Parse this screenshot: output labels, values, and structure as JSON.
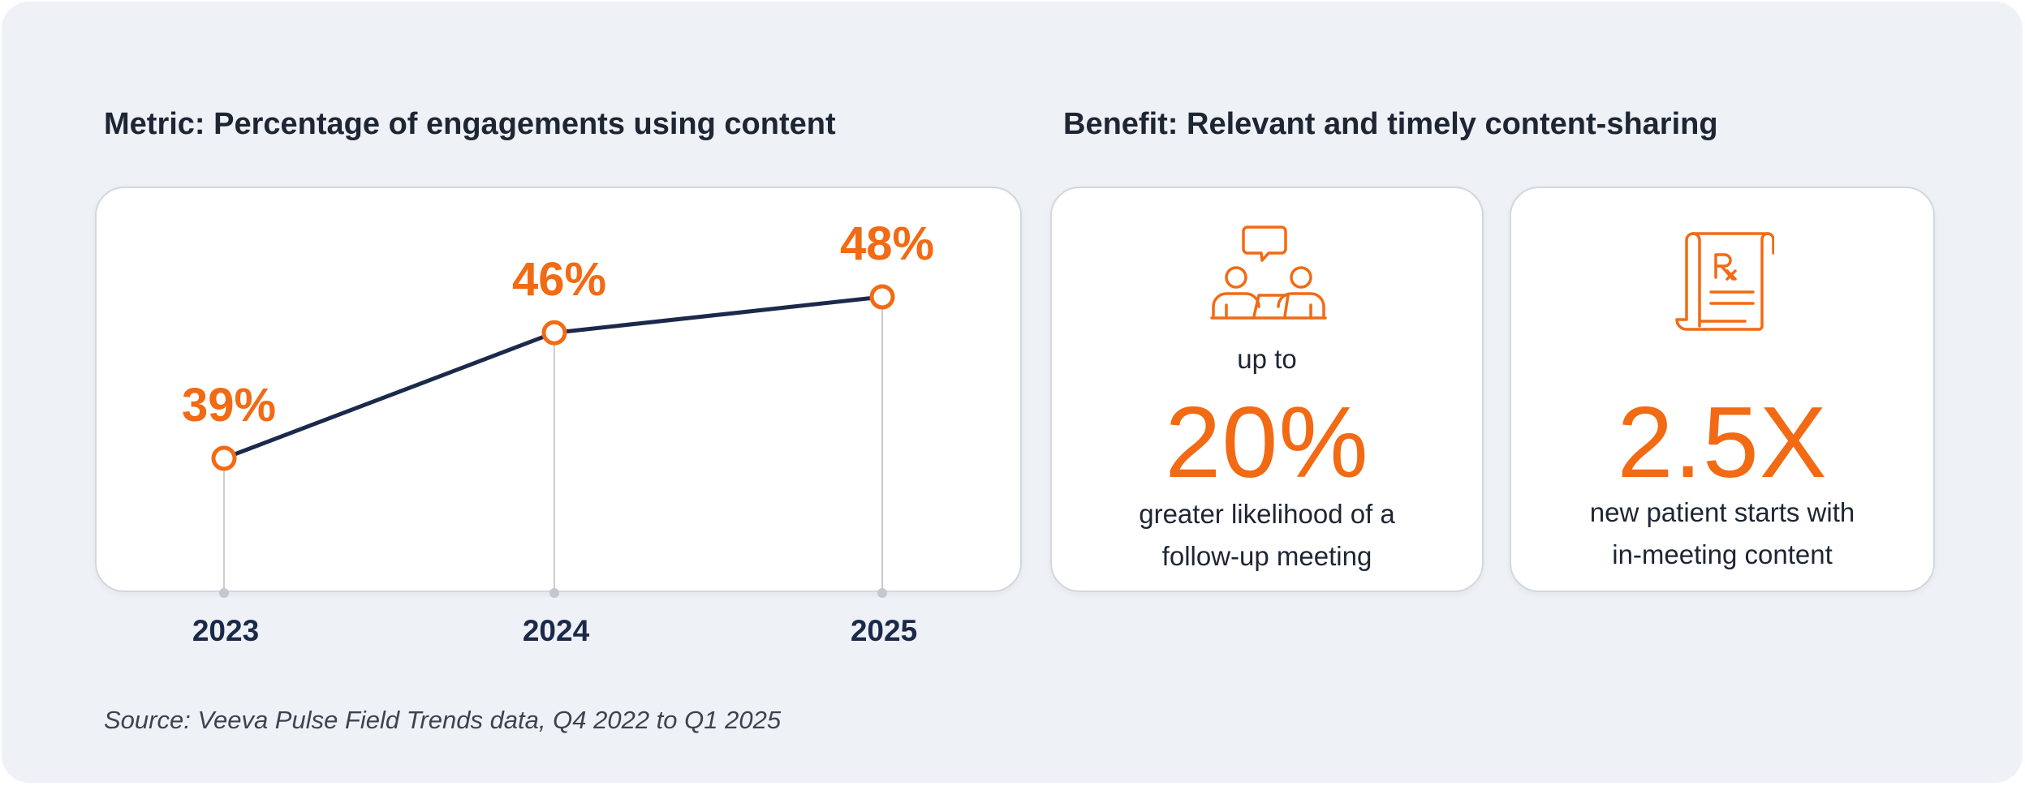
{
  "chart_data": {
    "type": "line",
    "title": "Metric: Percentage of engagements using content",
    "categories": [
      "2023",
      "2024",
      "2025"
    ],
    "values": [
      39,
      46,
      48
    ],
    "data_labels": [
      "39%",
      "46%",
      "48%"
    ],
    "unit": "%",
    "ylim": [
      30,
      50
    ],
    "grid": false,
    "legend": "none",
    "colors": {
      "line": "#1b2a4a",
      "marker": "#f26a13",
      "label": "#f26a13",
      "drop_line": "#c9ccd4",
      "tick_label": "#1b2a4a"
    }
  },
  "benefits": {
    "title": "Benefit: Relevant and timely content-sharing",
    "cards": [
      {
        "icon": "meeting-people-icon",
        "pre": "up to",
        "value": "20%",
        "desc_lines": [
          "greater likelihood of a",
          "follow-up meeting"
        ]
      },
      {
        "icon": "prescription-scroll-icon",
        "pre": "",
        "value": "2.5X",
        "desc_lines": [
          "new patient starts with",
          "in-meeting content"
        ]
      }
    ],
    "accent_color": "#f26a13"
  },
  "source": "Source: Veeva Pulse Field Trends data, Q4 2022 to Q1 2025"
}
